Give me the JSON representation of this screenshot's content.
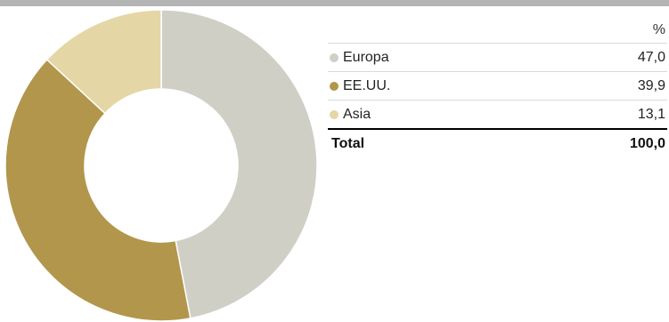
{
  "chart_data": {
    "type": "pie",
    "unit": "%",
    "categories": [
      "Europa",
      "EE.UU.",
      "Asia"
    ],
    "values": [
      47.0,
      39.9,
      13.1
    ],
    "value_labels": [
      "47,0",
      "39,9",
      "13,1"
    ],
    "colors": [
      "#cfcfc6",
      "#b1964c",
      "#e5d6a6"
    ],
    "total_label": "Total",
    "total_value": "100,0",
    "donut": true,
    "legend_position": "right"
  }
}
